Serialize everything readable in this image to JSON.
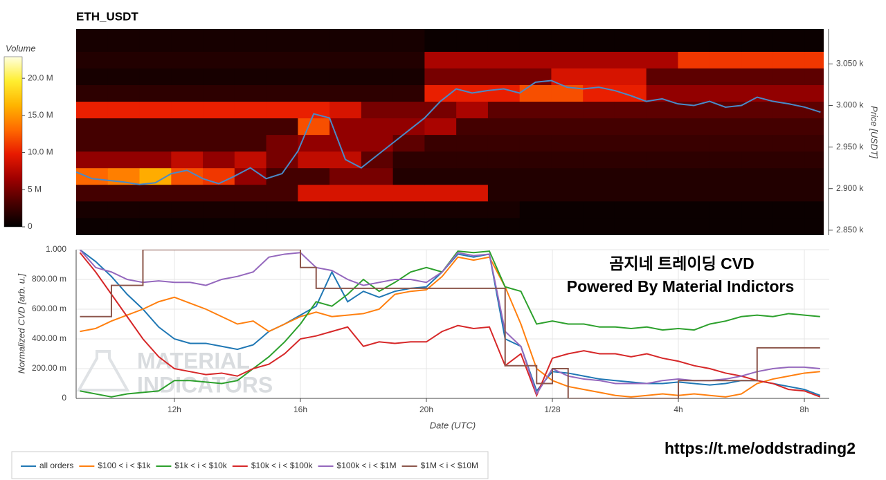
{
  "chart_data": [
    {
      "type": "heatmap",
      "title": "ETH_USDT",
      "y_label": "Price [USDT]",
      "colorbar_title": "Volume",
      "xlim": [
        9,
        32.6
      ],
      "ylim": [
        2844,
        3092
      ],
      "yticks": [
        {
          "value": 2850,
          "label": "2.850 k"
        },
        {
          "value": 2900,
          "label": "2.900 k"
        },
        {
          "value": 2950,
          "label": "2.950 k"
        },
        {
          "value": 3000,
          "label": "3.000 k"
        },
        {
          "value": 3050,
          "label": "3.050 k"
        }
      ],
      "zlim": [
        0,
        22.9
      ],
      "zticks": [
        0,
        {
          "value": 5,
          "label": "5 M"
        },
        {
          "value": 10,
          "label": "10.0 M"
        },
        {
          "value": 15,
          "label": "15.0 M"
        },
        {
          "value": 20,
          "label": "20.0 M"
        }
      ],
      "colorscale": [
        "#000000",
        "#4a0000",
        "#a00000",
        "#e81a00",
        "#ff6a00",
        "#ffb400",
        "#ffee30",
        "#ffffe0"
      ],
      "x_edges": [
        9,
        10,
        11,
        12,
        13,
        14,
        15,
        16,
        17,
        18,
        19,
        20,
        21,
        22,
        23,
        24,
        25,
        26,
        27,
        28,
        29,
        30,
        31,
        32,
        32.6
      ],
      "y_edges": [
        2844,
        2865,
        2885,
        2905,
        2925,
        2945,
        2965,
        2985,
        3005,
        3025,
        3045,
        3065,
        3092
      ],
      "z": [
        [
          0.5,
          0.5,
          0.5,
          0.5,
          0.5,
          0.5,
          0.5,
          0.5,
          0.5,
          0.5,
          0.5,
          0.5,
          0.5,
          0.5,
          0.5,
          0.5,
          0.5,
          0.5,
          0.5,
          0.5,
          0.5,
          0.5,
          0.5,
          0.5
        ],
        [
          1,
          1,
          1,
          1,
          1,
          1,
          1,
          1,
          1,
          1,
          1,
          1,
          1,
          1,
          0.5,
          0.5,
          0.5,
          0.5,
          0.5,
          0.5,
          0.5,
          0.5,
          0.5,
          0.5
        ],
        [
          3,
          3,
          3,
          3,
          3,
          3,
          3,
          9,
          9,
          9,
          9,
          9,
          9,
          1.5,
          1.5,
          1.5,
          1.5,
          1.5,
          1.5,
          1.5,
          1.5,
          1.5,
          1.5,
          1.5
        ],
        [
          13,
          14,
          16,
          12,
          11,
          6,
          3,
          3,
          5,
          5,
          1.5,
          1.5,
          1.5,
          1.5,
          1.5,
          1.5,
          1.5,
          1.5,
          1.5,
          1.5,
          1.5,
          1.5,
          1.5,
          1.5
        ],
        [
          6,
          6,
          6,
          8,
          6,
          8,
          5,
          8,
          8,
          4,
          2,
          2,
          2,
          2,
          2,
          2,
          2,
          2,
          2,
          2,
          2,
          2,
          2,
          2
        ],
        [
          3,
          3,
          3,
          3,
          3,
          3,
          5,
          6,
          6,
          6,
          4,
          2.5,
          2.5,
          2.5,
          2.5,
          2.5,
          2.5,
          2.5,
          2.5,
          2.5,
          2.5,
          2.5,
          2.5,
          2.5
        ],
        [
          3,
          3,
          3,
          3,
          3,
          3,
          3,
          12,
          6,
          6,
          6,
          7,
          3,
          3,
          3,
          3,
          3,
          3,
          3,
          3,
          3,
          3,
          3,
          3
        ],
        [
          10,
          10,
          10,
          10,
          10,
          10,
          10,
          10,
          9,
          5,
          5,
          5,
          7,
          4,
          4,
          4,
          4,
          4,
          4,
          4,
          4,
          4,
          4,
          4
        ],
        [
          2,
          2,
          2,
          2,
          2,
          2,
          2,
          2,
          2,
          2,
          2,
          10,
          10,
          10,
          12,
          12,
          10,
          10,
          6,
          6,
          6,
          6,
          6,
          6
        ],
        [
          1,
          1,
          1,
          1,
          1,
          1,
          1,
          1,
          1,
          1,
          1,
          5,
          5,
          5,
          5,
          9,
          9,
          9,
          4,
          4,
          4,
          4,
          4,
          4
        ],
        [
          1.5,
          1.5,
          1.5,
          1.5,
          1.5,
          1.5,
          1.5,
          1.5,
          1.5,
          1.5,
          1.5,
          7,
          7,
          7,
          7,
          7,
          7,
          7,
          7,
          11,
          11,
          11,
          11,
          11
        ],
        [
          1,
          1,
          1,
          1,
          1,
          1,
          1,
          1,
          1,
          1,
          1,
          0.5,
          0.5,
          0.5,
          0.5,
          0.5,
          0.5,
          0.5,
          0.5,
          0.5,
          0.5,
          0.5,
          0.5,
          0.5
        ]
      ],
      "line": {
        "color": "#4a8ac8",
        "x": [
          9,
          9.5,
          10,
          10.5,
          11,
          11.5,
          12,
          12.5,
          13,
          13.5,
          14,
          14.5,
          15,
          15.5,
          16,
          16.5,
          17,
          17.5,
          18,
          18.5,
          19,
          19.5,
          20,
          20.5,
          21,
          21.5,
          22,
          22.5,
          23,
          23.5,
          24,
          24.5,
          25,
          25.5,
          26,
          26.5,
          27,
          27.5,
          28,
          28.5,
          29,
          29.5,
          30,
          30.5,
          31,
          31.5,
          32,
          32.5
        ],
        "values": [
          2920,
          2912,
          2910,
          2908,
          2905,
          2907,
          2918,
          2922,
          2912,
          2906,
          2915,
          2925,
          2912,
          2918,
          2945,
          2990,
          2985,
          2935,
          2925,
          2940,
          2955,
          2970,
          2985,
          3005,
          3020,
          3015,
          3018,
          3020,
          3015,
          3028,
          3030,
          3022,
          3020,
          3022,
          3018,
          3012,
          3005,
          3008,
          3002,
          3000,
          3005,
          2998,
          3000,
          3010,
          3005,
          3002,
          2998,
          2992
        ]
      }
    },
    {
      "type": "line",
      "x_label": "Date (UTC)",
      "y_label": "Normalized CVD [arb. u.]",
      "xlim": [
        8.88,
        32.79
      ],
      "ylim": [
        0,
        1
      ],
      "grid": true,
      "legend": "bottom-left",
      "xticks": [
        {
          "value": 12,
          "label": "12h"
        },
        {
          "value": 16,
          "label": "16h"
        },
        {
          "value": 20,
          "label": "20h"
        },
        {
          "value": 24,
          "label": "1/28"
        },
        {
          "value": 28,
          "label": "4h"
        },
        {
          "value": 32,
          "label": "8h"
        }
      ],
      "yticks": [
        0,
        {
          "value": 0.2,
          "label": "200.00 m"
        },
        {
          "value": 0.4,
          "label": "400.00 m"
        },
        {
          "value": 0.6,
          "label": "600.00 m"
        },
        {
          "value": 0.8,
          "label": "800.00 m"
        },
        {
          "value": 1,
          "label": "1.000"
        }
      ],
      "annotations": [
        "곰지네 트레이딩 CVD",
        "Powered By Material Indictors",
        "https://t.me/oddstrading2",
        "MATERIAL",
        "INDICATORS"
      ],
      "x": [
        9,
        9.5,
        10,
        10.5,
        11,
        11.5,
        12,
        12.5,
        13,
        13.5,
        14,
        14.5,
        15,
        15.5,
        16,
        16.5,
        17,
        17.5,
        18,
        18.5,
        19,
        19.5,
        20,
        20.5,
        21,
        21.5,
        22,
        22.5,
        23,
        23.5,
        24,
        24.5,
        25,
        25.5,
        26,
        26.5,
        27,
        27.5,
        28,
        28.5,
        29,
        29.5,
        30,
        30.5,
        31,
        31.5,
        32,
        32.5
      ],
      "series": [
        {
          "name": "all orders",
          "color": "#1f77b4",
          "values": [
            1.0,
            0.92,
            0.82,
            0.7,
            0.6,
            0.48,
            0.4,
            0.37,
            0.37,
            0.35,
            0.33,
            0.36,
            0.45,
            0.5,
            0.56,
            0.62,
            0.85,
            0.65,
            0.72,
            0.68,
            0.72,
            0.74,
            0.75,
            0.85,
            0.97,
            0.95,
            0.97,
            0.4,
            0.35,
            0.05,
            0.18,
            0.17,
            0.15,
            0.13,
            0.12,
            0.11,
            0.1,
            0.1,
            0.11,
            0.1,
            0.09,
            0.1,
            0.12,
            0.12,
            0.1,
            0.08,
            0.06,
            0.02
          ]
        },
        {
          "name": "$100 < i < $1k",
          "color": "#ff7f0e",
          "values": [
            0.45,
            0.47,
            0.52,
            0.56,
            0.6,
            0.65,
            0.68,
            0.64,
            0.6,
            0.55,
            0.5,
            0.52,
            0.45,
            0.5,
            0.55,
            0.58,
            0.55,
            0.56,
            0.57,
            0.6,
            0.7,
            0.72,
            0.73,
            0.82,
            0.95,
            0.93,
            0.95,
            0.75,
            0.5,
            0.2,
            0.12,
            0.08,
            0.06,
            0.04,
            0.02,
            0.01,
            0.02,
            0.03,
            0.02,
            0.03,
            0.02,
            0.01,
            0.03,
            0.1,
            0.13,
            0.15,
            0.17,
            0.18
          ]
        },
        {
          "name": "$1k < i < $10k",
          "color": "#2ca02c",
          "values": [
            0.05,
            0.03,
            0.01,
            0.03,
            0.04,
            0.05,
            0.12,
            0.12,
            0.11,
            0.1,
            0.12,
            0.2,
            0.28,
            0.38,
            0.5,
            0.65,
            0.62,
            0.7,
            0.8,
            0.72,
            0.78,
            0.85,
            0.88,
            0.85,
            0.99,
            0.98,
            0.99,
            0.75,
            0.72,
            0.5,
            0.52,
            0.5,
            0.5,
            0.48,
            0.48,
            0.47,
            0.48,
            0.46,
            0.47,
            0.46,
            0.5,
            0.52,
            0.55,
            0.56,
            0.55,
            0.57,
            0.56,
            0.55
          ]
        },
        {
          "name": "$10k < i < $100k",
          "color": "#d62728",
          "values": [
            0.98,
            0.85,
            0.7,
            0.55,
            0.4,
            0.28,
            0.2,
            0.18,
            0.16,
            0.17,
            0.15,
            0.2,
            0.23,
            0.3,
            0.4,
            0.42,
            0.45,
            0.48,
            0.35,
            0.38,
            0.37,
            0.38,
            0.38,
            0.45,
            0.49,
            0.47,
            0.48,
            0.22,
            0.3,
            0.02,
            0.27,
            0.3,
            0.32,
            0.3,
            0.3,
            0.28,
            0.3,
            0.27,
            0.25,
            0.22,
            0.2,
            0.17,
            0.15,
            0.12,
            0.1,
            0.06,
            0.05,
            0.01
          ]
        },
        {
          "name": "$100k < i < $1M",
          "color": "#9467bd",
          "values": [
            1.0,
            0.88,
            0.85,
            0.8,
            0.78,
            0.79,
            0.78,
            0.78,
            0.76,
            0.8,
            0.82,
            0.85,
            0.95,
            0.97,
            0.98,
            0.88,
            0.86,
            0.8,
            0.76,
            0.78,
            0.8,
            0.8,
            0.78,
            0.85,
            0.98,
            0.96,
            0.97,
            0.45,
            0.35,
            0.03,
            0.2,
            0.15,
            0.13,
            0.12,
            0.1,
            0.1,
            0.1,
            0.12,
            0.13,
            0.12,
            0.12,
            0.13,
            0.15,
            0.18,
            0.2,
            0.21,
            0.21,
            0.2
          ]
        },
        {
          "name": "$1M < i < $10M",
          "color": "#8c564b",
          "shape": "hv",
          "values": [
            0.55,
            0.55,
            0.76,
            0.76,
            1,
            1,
            1,
            1,
            1,
            1,
            1,
            1,
            1,
            1,
            0.88,
            0.74,
            0.74,
            0.74,
            0.74,
            0.74,
            0.74,
            0.74,
            0.74,
            0.74,
            0.74,
            0.74,
            0.74,
            0.22,
            0.22,
            0.1,
            0.2,
            0,
            0,
            0,
            0,
            0,
            0,
            0,
            0.12,
            0.12,
            0.12,
            0.12,
            0.12,
            0.34,
            0.34,
            0.34,
            0.34,
            0.34
          ]
        }
      ]
    }
  ]
}
